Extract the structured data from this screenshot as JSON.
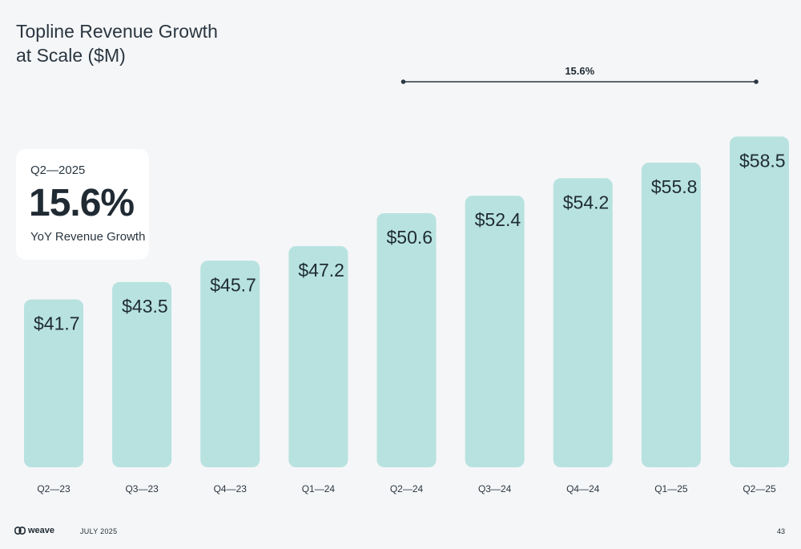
{
  "title_lines": [
    "Topline Revenue Growth",
    "at Scale ($M)"
  ],
  "stat": {
    "period": "Q2—2025",
    "value": "15.6%",
    "label": "YoY Revenue Growth"
  },
  "chart_data": {
    "type": "bar",
    "categories": [
      "Q2—23",
      "Q3—23",
      "Q4—23",
      "Q1—24",
      "Q2—24",
      "Q3—24",
      "Q4—24",
      "Q1—25",
      "Q2—25"
    ],
    "values": [
      41.7,
      43.5,
      45.7,
      47.2,
      50.6,
      52.4,
      54.2,
      55.8,
      58.5
    ],
    "data_labels": [
      "$41.7",
      "$43.5",
      "$45.7",
      "$47.2",
      "$50.6",
      "$52.4",
      "$54.2",
      "$55.8",
      "$58.5"
    ],
    "title": "Topline Revenue Growth at Scale ($M)",
    "xlabel": "",
    "ylabel": "",
    "grid": false,
    "bar_color": "#b7e2e0",
    "annotation": {
      "label": "15.6%",
      "from": "Q2—24",
      "to": "Q2—25"
    }
  },
  "footer": {
    "brand": "weave",
    "brand_icon": "weave-logo-icon",
    "date": "JULY 2025",
    "page": "43"
  }
}
